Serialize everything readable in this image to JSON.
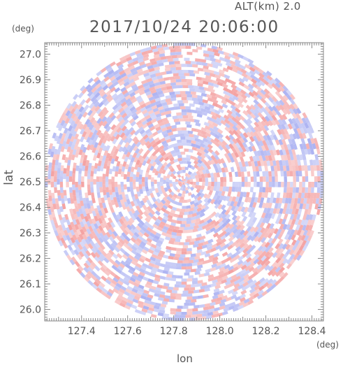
{
  "header": {
    "altitude": "ALT(km) 2.0",
    "datetime": "2017/10/24 20:06:00"
  },
  "chart_data": {
    "type": "heatmap",
    "title": "2017/10/24 20:06:00",
    "subtitle": "ALT(km) 2.0",
    "xlabel": "lon",
    "ylabel": "lat",
    "x_unit": "(deg)",
    "y_unit": "(deg)",
    "xlim": [
      127.24,
      128.45
    ],
    "ylim": [
      25.955,
      27.045
    ],
    "x_ticks": [
      127.4,
      127.6,
      127.8,
      128.0,
      128.2,
      128.4
    ],
    "x_tick_labels": [
      "127.4",
      "127.6",
      "127.8",
      "128.0",
      "128.2",
      "128.4"
    ],
    "y_ticks": [
      26.0,
      26.1,
      26.2,
      26.3,
      26.4,
      26.5,
      26.6,
      26.7,
      26.8,
      26.9,
      27.0
    ],
    "y_tick_labels": [
      "26.0",
      "26.1",
      "26.2",
      "26.3",
      "26.4",
      "26.5",
      "26.6",
      "26.7",
      "26.8",
      "26.9",
      "27.0"
    ],
    "radar_center": {
      "lon": 127.845,
      "lat": 26.5
    },
    "radar_radius_lon_deg": 0.605,
    "radar_radius_lat_deg": 0.545,
    "field": "polar radar field, alternating positive (red) and negative (blue) values",
    "colors": {
      "positive": "#f4a3a3",
      "negative": "#aeb4f2",
      "neutral": "#ffffff"
    },
    "grid": false
  }
}
